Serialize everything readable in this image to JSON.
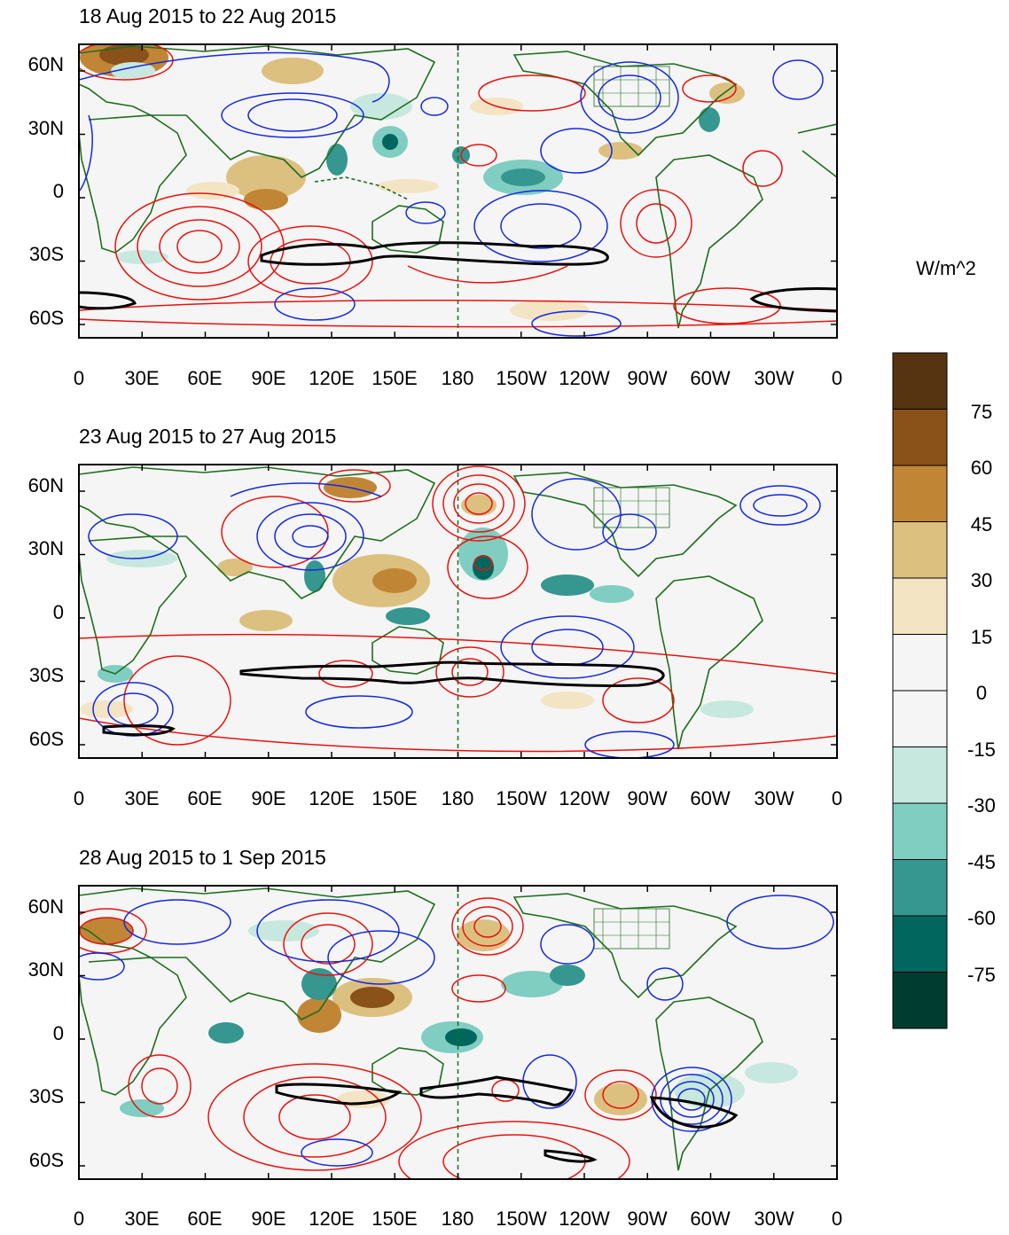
{
  "panels": [
    {
      "title": "18 Aug 2015 to 22 Aug 2015"
    },
    {
      "title": "23 Aug 2015 to 27 Aug 2015"
    },
    {
      "title": "28 Aug 2015 to 1 Sep 2015"
    }
  ],
  "lat_labels": [
    "60N",
    "30N",
    "0",
    "30S",
    "60S"
  ],
  "lon_labels": [
    "0",
    "30E",
    "60E",
    "90E",
    "120E",
    "150E",
    "180",
    "150W",
    "120W",
    "90W",
    "60W",
    "30W",
    "0"
  ],
  "colorbar": {
    "units": "W/m^2",
    "labels": [
      "75",
      "60",
      "45",
      "30",
      "15",
      "0",
      "-15",
      "-30",
      "-45",
      "-60",
      "-75"
    ],
    "colors": [
      "#563411",
      "#8a5119",
      "#c08636",
      "#dcc07f",
      "#f3e4c4",
      "#f5f5f5",
      "#f5f5f5",
      "#c7e8df",
      "#80cdc1",
      "#35978f",
      "#01665e",
      "#003c30"
    ]
  },
  "colors": {
    "land": "#1e6e1e",
    "positive_contour": "#e8120e",
    "negative_contour": "#1428e0",
    "jet_line": "#000000"
  }
}
